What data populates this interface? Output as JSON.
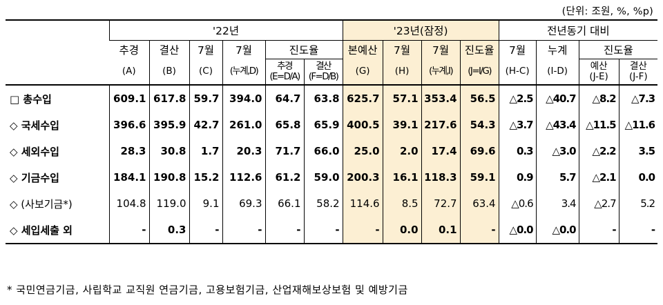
{
  "unit_note": "(단위: 조원, %, %p)",
  "header": {
    "group_22": "'22년",
    "group_23": "'23년(잠정)",
    "group_yoy": "전년동기 대비",
    "progress_22": "진도율",
    "progress_yoy": "진도율",
    "cols": [
      {
        "top": "추경",
        "bottom": "(A)"
      },
      {
        "top": "결산",
        "bottom": "(B)"
      },
      {
        "top": "7월",
        "bottom": "(C)"
      },
      {
        "top": "7월",
        "bottom": "(누계,D)"
      },
      {
        "top": "추경",
        "bottom": "(E=D/A)"
      },
      {
        "top": "결산",
        "bottom": "(F=D/B)"
      },
      {
        "top": "본예산",
        "bottom": "(G)"
      },
      {
        "top": "7월",
        "bottom": "(H)"
      },
      {
        "top": "7월",
        "bottom": "(누계,I)"
      },
      {
        "top": "진도율",
        "bottom": "(J=I/G)"
      },
      {
        "top": "7월",
        "bottom": "(H-C)"
      },
      {
        "top": "누계",
        "bottom": "(I-D)"
      },
      {
        "top": "예산",
        "bottom": "(J-E)"
      },
      {
        "top": "결산",
        "bottom": "(J-F)"
      }
    ]
  },
  "rows": [
    {
      "label": "□ 총수입",
      "values": [
        "609.1",
        "617.8",
        "59.7",
        "394.0",
        "64.7",
        "63.8",
        "625.7",
        "57.1",
        "353.4",
        "56.5",
        "△2.5",
        "△40.7",
        "△8.2",
        "△7.3"
      ]
    },
    {
      "label": "◇ 국세수입",
      "values": [
        "396.6",
        "395.9",
        "42.7",
        "261.0",
        "65.8",
        "65.9",
        "400.5",
        "39.1",
        "217.6",
        "54.3",
        "△3.7",
        "△43.4",
        "△11.5",
        "△11.6"
      ]
    },
    {
      "label": "◇ 세외수입",
      "values": [
        "28.3",
        "30.8",
        "1.7",
        "20.3",
        "71.7",
        "66.0",
        "25.0",
        "2.0",
        "17.4",
        "69.6",
        "0.3",
        "△3.0",
        "△2.2",
        "3.5"
      ]
    },
    {
      "label": "◇ 기금수입",
      "values": [
        "184.1",
        "190.8",
        "15.2",
        "112.6",
        "61.2",
        "59.0",
        "200.3",
        "16.1",
        "118.3",
        "59.1",
        "0.9",
        "5.7",
        "△2.1",
        "0.0"
      ]
    },
    {
      "label": "◇ (사보기금*)",
      "values": [
        "104.8",
        "119.0",
        "9.1",
        "69.3",
        "66.1",
        "58.2",
        "114.6",
        "8.5",
        "72.7",
        "63.4",
        "△0.6",
        "3.4",
        "△2.7",
        "5.2"
      ]
    },
    {
      "label": "◇ 세입세출 외",
      "values": [
        "-",
        "0.3",
        "-",
        "-",
        "-",
        "-",
        "-",
        "0.0",
        "0.1",
        "-",
        "△0.0",
        "△0.0",
        "-",
        "-"
      ]
    }
  ],
  "footnote": "* 국민연금기금, 사립학교 교직원 연금기금, 고용보험기금, 산업재해보상보험 및 예방기금",
  "colors": {
    "highlight": "#fcefd3"
  }
}
